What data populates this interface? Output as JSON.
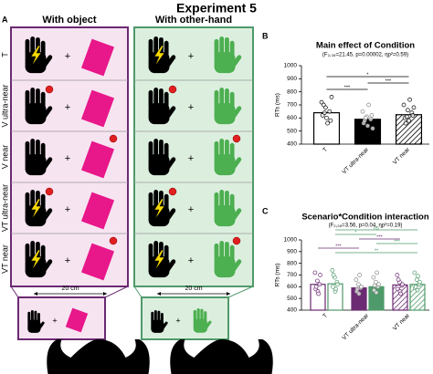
{
  "title": "Experiment 5",
  "panel_letters": [
    "A",
    "B",
    "C"
  ],
  "panel_a": {
    "columns": [
      "With object",
      "With other-hand"
    ],
    "rows": [
      "T",
      "V ultra-near",
      "V near",
      "VT ultra-near",
      "VT near"
    ],
    "plus_sign": "+",
    "distance": "20 cm"
  },
  "chart_data": [
    {
      "type": "bar",
      "title": "Main effect of Condition",
      "subtitle": "(F₂,₃₈=21.45, p=0.00002, ηp²=0.59)",
      "y_label": "RTs (ms)",
      "categories": [
        "T",
        "VT ultra-near",
        "VT near"
      ],
      "styles": [
        "outline",
        "solid",
        "hatched"
      ],
      "color": "#000000",
      "values": [
        640,
        590,
        625
      ],
      "points": [
        [
          720,
          680,
          650,
          620,
          600,
          580,
          700,
          560,
          760,
          640
        ],
        [
          650,
          610,
          590,
          560,
          540,
          620,
          580,
          700,
          520,
          600
        ],
        [
          700,
          660,
          640,
          600,
          580,
          620,
          560,
          740,
          680,
          610
        ]
      ],
      "ylim": [
        400,
        1000
      ],
      "yticks": [
        400,
        500,
        600,
        700,
        800,
        900,
        1000
      ],
      "annotations": [
        {
          "from": 0,
          "to": 2,
          "label": "*"
        },
        {
          "from": 1,
          "to": 2,
          "label": "***"
        },
        {
          "from": 0,
          "to": 1,
          "label": "***"
        }
      ]
    },
    {
      "type": "grouped-bar",
      "title": "Scenario*Condition interaction",
      "subtitle": "(F₂,₃₈=3.56, p=0.04, ηp²=0.19)",
      "y_label": "RTs (ms)",
      "categories": [
        "T",
        "VT ultra-near",
        "VT near"
      ],
      "styles": [
        "outline",
        "solid",
        "hatched"
      ],
      "series": [
        {
          "color": "#6b2a72",
          "values": [
            620,
            590,
            615
          ],
          "points": [
            [
              720,
              650,
              620,
              580,
              560,
              700,
              600,
              540
            ],
            [
              660,
              620,
              590,
              560,
              540,
              600,
              580,
              700
            ],
            [
              700,
              640,
              610,
              580,
              560,
              620,
              660,
              540
            ]
          ]
        },
        {
          "color": "#4f9a6a",
          "values": [
            625,
            600,
            620
          ],
          "points": [
            [
              740,
              680,
              640,
              600,
              560,
              620,
              700,
              580
            ],
            [
              680,
              640,
              600,
              570,
              550,
              620,
              610,
              720
            ],
            [
              720,
              660,
              620,
              590,
              570,
              640,
              600,
              690
            ]
          ]
        }
      ],
      "ylim": [
        400,
        1000
      ],
      "yticks": [
        400,
        500,
        600,
        700,
        800,
        900,
        1000
      ],
      "annotations": [
        {
          "series": 1,
          "from": 0,
          "to": 2,
          "label": "ns"
        },
        {
          "series": 1,
          "from": 0,
          "to": 1,
          "label": "*"
        },
        {
          "series": 0,
          "from": 1,
          "to": 2,
          "label": "***"
        },
        {
          "series": 1,
          "from": 1,
          "to": 2,
          "label": "***"
        },
        {
          "series": 0,
          "from": 0,
          "to": 1,
          "label": "***"
        },
        {
          "series": 1,
          "from": 0,
          "to": 2,
          "label": "**"
        }
      ]
    }
  ]
}
